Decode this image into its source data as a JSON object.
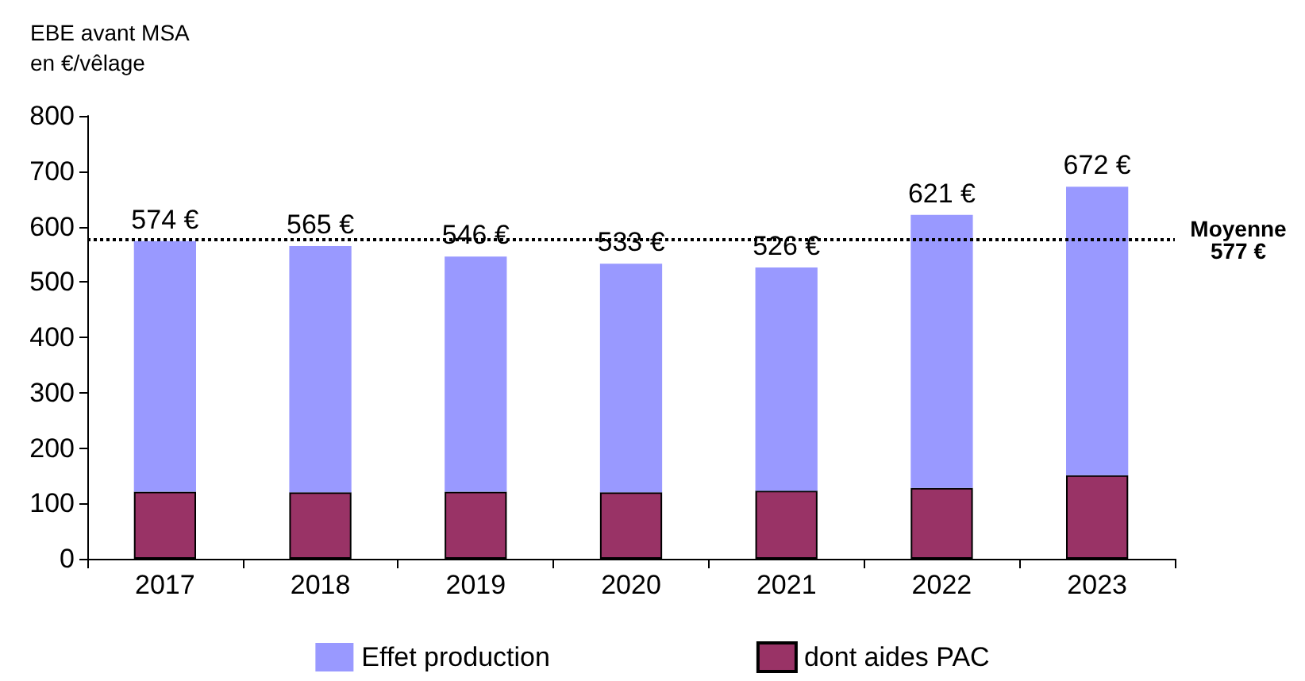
{
  "chart_data": {
    "type": "bar",
    "ylabel": "EBE avant MSA\nen €/vêlage",
    "categories": [
      "2017",
      "2018",
      "2019",
      "2020",
      "2021",
      "2022",
      "2023"
    ],
    "series": [
      {
        "name": "dont aides PAC",
        "color": "#993366",
        "values": [
          121,
          120,
          121,
          120,
          123,
          128,
          151
        ]
      },
      {
        "name": "Effet production",
        "color": "#9999ff",
        "values": [
          453,
          445,
          425,
          413,
          403,
          493,
          521
        ]
      }
    ],
    "stacked": true,
    "totals": [
      "574 €",
      "565 €",
      "546 €",
      "533 €",
      "526 €",
      "621 €",
      "672 €"
    ],
    "ylim": [
      0,
      800
    ],
    "yticks": [
      0,
      100,
      200,
      300,
      400,
      500,
      600,
      700,
      800
    ],
    "grid": false,
    "legend": "bottom",
    "ref_lines": [
      {
        "axis": "y",
        "value": 577,
        "label": "Moyenne\n577 €",
        "color": "#000000",
        "line_style": "dotted"
      }
    ]
  }
}
